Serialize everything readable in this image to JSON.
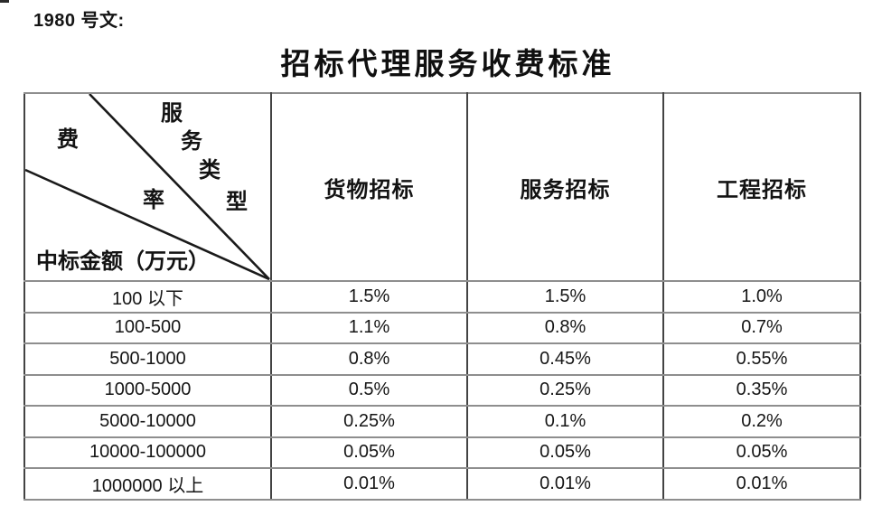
{
  "page": {
    "doc_label": "1980 号文:",
    "title": "招标代理服务收费标准"
  },
  "table": {
    "corner": {
      "fee_chars": [
        "费",
        "率"
      ],
      "service_type_chars": [
        "服",
        "务",
        "类",
        "型"
      ],
      "amount_label": "中标金额（万元）"
    },
    "columns": [
      "货物招标",
      "服务招标",
      "工程招标"
    ],
    "rows": [
      {
        "range": "100 以下",
        "goods": "1.5%",
        "services": "1.5%",
        "works": "1.0%"
      },
      {
        "range": "100-500",
        "goods": "1.1%",
        "services": "0.8%",
        "works": "0.7%"
      },
      {
        "range": "500-1000",
        "goods": "0.8%",
        "services": "0.45%",
        "works": "0.55%"
      },
      {
        "range": "1000-5000",
        "goods": "0.5%",
        "services": "0.25%",
        "works": "0.35%"
      },
      {
        "range": "5000-10000",
        "goods": "0.25%",
        "services": "0.1%",
        "works": "0.2%"
      },
      {
        "range": "10000-100000",
        "goods": "0.05%",
        "services": "0.05%",
        "works": "0.05%"
      },
      {
        "range": "1000000 以上",
        "goods": "0.01%",
        "services": "0.01%",
        "works": "0.01%"
      }
    ],
    "line_color": "#1a1a1a"
  }
}
